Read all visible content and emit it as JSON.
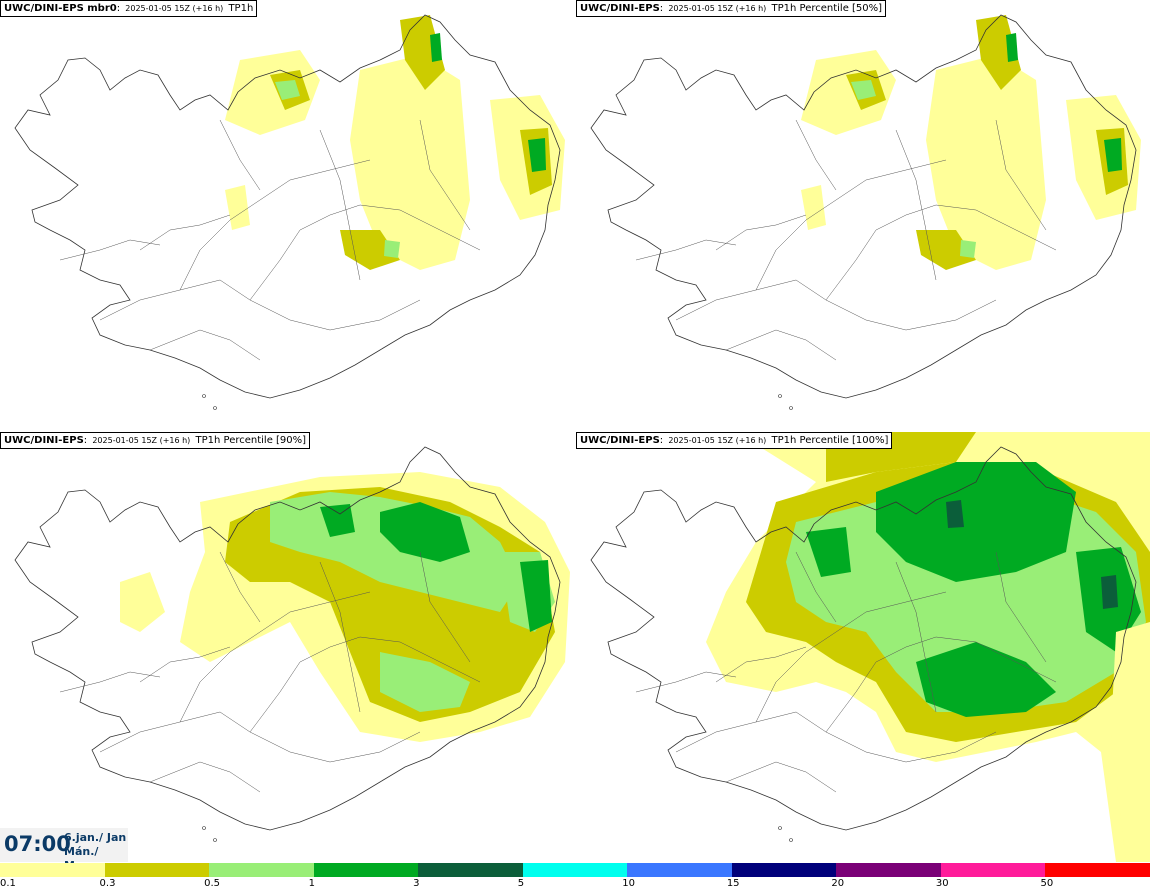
{
  "panels": [
    {
      "source": "UWC/DINI-EPS mbr0",
      "run": "2025-01-05 15Z (+16 h)",
      "product": "TP1h",
      "level": 1
    },
    {
      "source": "UWC/DINI-EPS",
      "run": "2025-01-05 15Z (+16 h)",
      "product": "TP1h Percentile [50%]",
      "level": 1
    },
    {
      "source": "UWC/DINI-EPS",
      "run": "2025-01-05 15Z (+16 h)",
      "product": "TP1h Percentile [90%]",
      "level": 2
    },
    {
      "source": "UWC/DINI-EPS",
      "run": "2025-01-05 15Z (+16 h)",
      "product": "TP1h Percentile [100%]",
      "level": 3
    }
  ],
  "valid_time": {
    "time": "07:00",
    "date_line1": "6.jan./ Jan",
    "date_line2": "Mán./ Mon"
  },
  "legend": {
    "colors": [
      "#ffff99",
      "#cccc00",
      "#99ee77",
      "#00aa22",
      "#0b5e3a",
      "#00ffee",
      "#3a77ff",
      "#00007a",
      "#7a0077",
      "#ff1b9a",
      "#ff0000"
    ],
    "labels": [
      "0.1",
      "0.3",
      "0.5",
      "1",
      "3",
      "5",
      "10",
      "15",
      "20",
      "30",
      "50"
    ]
  }
}
